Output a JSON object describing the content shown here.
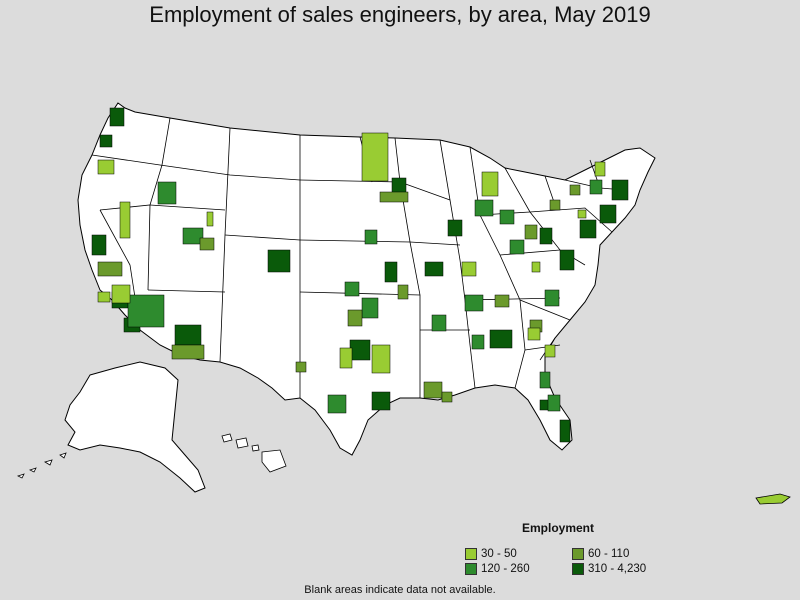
{
  "title": "Employment of sales engineers, by area, May 2019",
  "legend": {
    "title": "Employment",
    "items": [
      {
        "label": "30 - 50",
        "color": "#99cc33"
      },
      {
        "label": "60 - 110",
        "color": "#6b9a2c"
      },
      {
        "label": "120 - 260",
        "color": "#2e8b2e"
      },
      {
        "label": "310 - 4,230",
        "color": "#0a5a0a"
      }
    ]
  },
  "footnote": "Blank areas indicate data not available.",
  "colors": {
    "background": "#dcdcdc",
    "land": "#ffffff",
    "border": "#000000"
  }
}
